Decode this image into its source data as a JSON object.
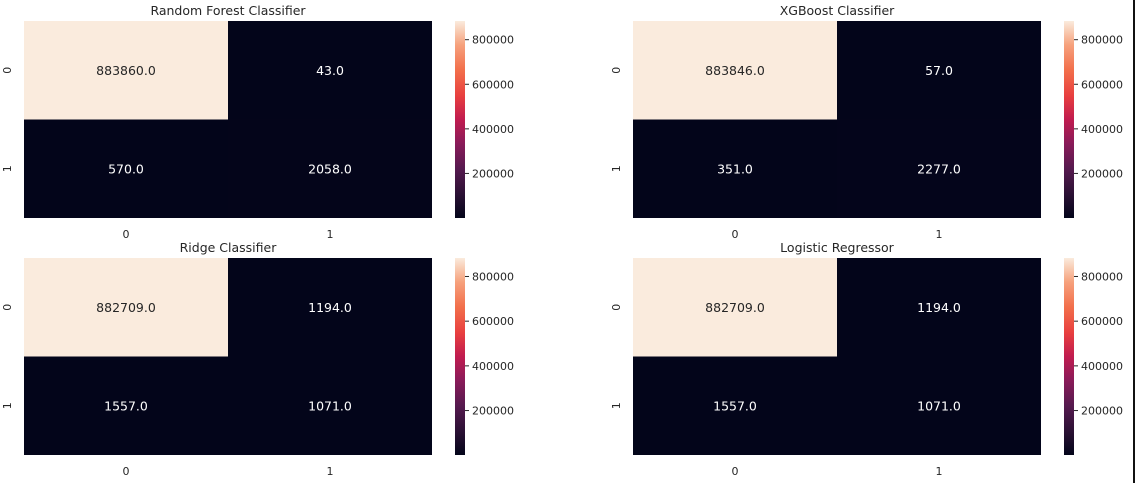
{
  "figure": {
    "colorbar_ticks": [
      "200000",
      "400000",
      "600000",
      "800000"
    ]
  },
  "chart_data": [
    {
      "type": "heatmap",
      "title": "Random Forest Classifier",
      "x_categories": [
        "0",
        "1"
      ],
      "y_categories": [
        "0",
        "1"
      ],
      "values": [
        [
          883860,
          43
        ],
        [
          570,
          2058
        ]
      ],
      "cell_labels": [
        [
          "883860.0",
          "43.0"
        ],
        [
          "570.0",
          "2058.0"
        ]
      ],
      "colorbar_range": [
        43,
        883860
      ],
      "colorbar_ticks": [
        200000,
        400000,
        600000,
        800000
      ],
      "colormap": "rocket"
    },
    {
      "type": "heatmap",
      "title": "XGBoost Classifier",
      "x_categories": [
        "0",
        "1"
      ],
      "y_categories": [
        "0",
        "1"
      ],
      "values": [
        [
          883846,
          57
        ],
        [
          351,
          2277
        ]
      ],
      "cell_labels": [
        [
          "883846.0",
          "57.0"
        ],
        [
          "351.0",
          "2277.0"
        ]
      ],
      "colorbar_range": [
        57,
        883846
      ],
      "colorbar_ticks": [
        200000,
        400000,
        600000,
        800000
      ],
      "colormap": "rocket"
    },
    {
      "type": "heatmap",
      "title": "Ridge Classifier",
      "x_categories": [
        "0",
        "1"
      ],
      "y_categories": [
        "0",
        "1"
      ],
      "values": [
        [
          882709,
          1194
        ],
        [
          1557,
          1071
        ]
      ],
      "cell_labels": [
        [
          "882709.0",
          "1194.0"
        ],
        [
          "1557.0",
          "1071.0"
        ]
      ],
      "colorbar_range": [
        1071,
        882709
      ],
      "colorbar_ticks": [
        200000,
        400000,
        600000,
        800000
      ],
      "colormap": "rocket"
    },
    {
      "type": "heatmap",
      "title": "Logistic Regressor",
      "x_categories": [
        "0",
        "1"
      ],
      "y_categories": [
        "0",
        "1"
      ],
      "values": [
        [
          882709,
          1194
        ],
        [
          1557,
          1071
        ]
      ],
      "cell_labels": [
        [
          "882709.0",
          "1194.0"
        ],
        [
          "1557.0",
          "1071.0"
        ]
      ],
      "colorbar_range": [
        1071,
        882709
      ],
      "colorbar_ticks": [
        200000,
        400000,
        600000,
        800000
      ],
      "colormap": "rocket"
    }
  ]
}
